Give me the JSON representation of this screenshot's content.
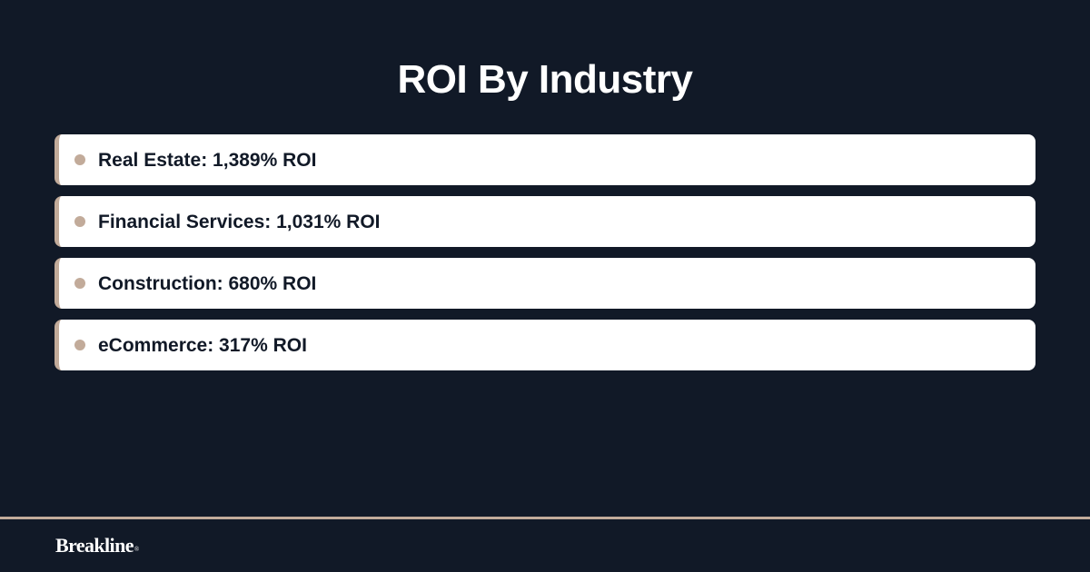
{
  "title": "ROI By Industry",
  "items": [
    {
      "label": "Real Estate: 1,389% ROI"
    },
    {
      "label": "Financial Services: 1,031% ROI"
    },
    {
      "label": "Construction: 680% ROI"
    },
    {
      "label": "eCommerce: 317% ROI"
    }
  ],
  "footer": {
    "brand": "Breakline",
    "brand_mark": "®"
  },
  "colors": {
    "background": "#111927",
    "accent": "#c2ab9a",
    "card": "#ffffff",
    "text_dark": "#111927",
    "text_light": "#ffffff"
  }
}
